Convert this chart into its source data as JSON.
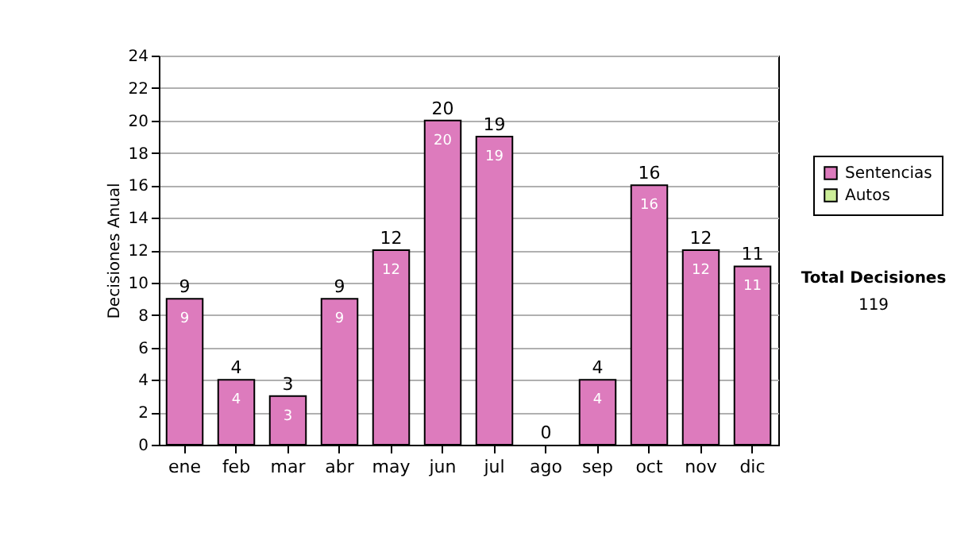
{
  "chart_data": {
    "type": "bar",
    "ylabel": "Decisiones Anual",
    "categories": [
      "ene",
      "feb",
      "mar",
      "abr",
      "may",
      "jun",
      "jul",
      "ago",
      "sep",
      "oct",
      "nov",
      "dic"
    ],
    "series": [
      {
        "name": "Sentencias",
        "color": "#dd7bbd",
        "values": [
          9,
          4,
          3,
          9,
          12,
          20,
          19,
          0,
          4,
          16,
          12,
          11
        ],
        "value_labels": [
          "9",
          "4",
          "3",
          "9",
          "12",
          "20",
          "19",
          null,
          "4",
          "16",
          "12",
          "11"
        ]
      },
      {
        "name": "Autos",
        "color": "#ccee99",
        "values": [
          0,
          0,
          0,
          0,
          0,
          0,
          0,
          0,
          0,
          0,
          0,
          0
        ]
      }
    ],
    "stacked": true,
    "totals": [
      "9",
      "4",
      "3",
      "9",
      "12",
      "20",
      "19",
      "0",
      "4",
      "16",
      "12",
      "11"
    ],
    "ylim": [
      0,
      24
    ],
    "yticks": [
      0,
      2,
      4,
      6,
      8,
      10,
      12,
      14,
      16,
      18,
      20,
      22,
      24
    ],
    "grid": "y",
    "legend": "right",
    "annotations": [
      "Total Decisiones",
      "119"
    ]
  }
}
